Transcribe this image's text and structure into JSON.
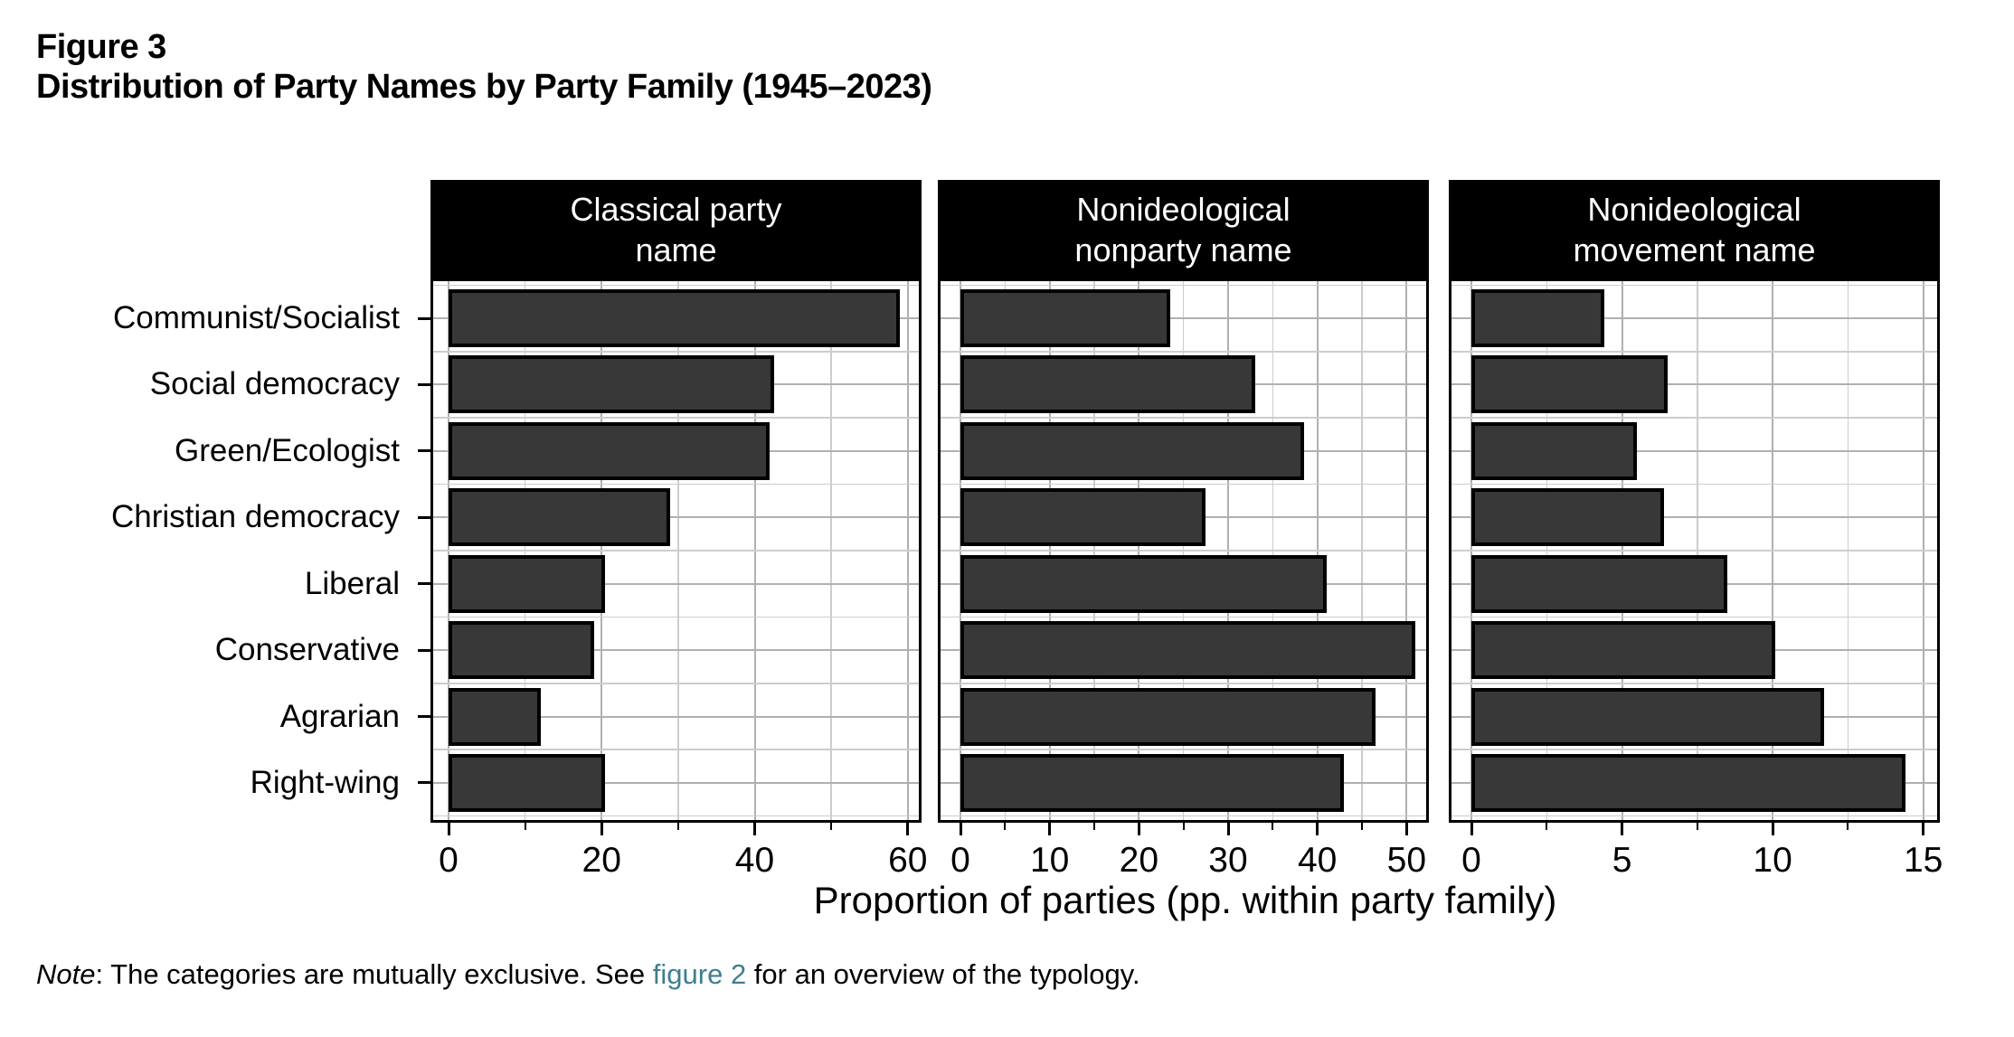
{
  "figure": {
    "label": "Figure 3",
    "title": "Distribution of Party Names by Party Family (1945–2023)"
  },
  "chart_data": {
    "type": "bar",
    "orientation": "horizontal",
    "categories": [
      "Communist/Socialist",
      "Social democracy",
      "Green/Ecologist",
      "Christian democracy",
      "Liberal",
      "Conservative",
      "Agrarian",
      "Right-wing"
    ],
    "xlabel": "Proportion of parties (pp. within party family)",
    "grid": "major and minor, light gray, both axes",
    "legend_position": "none",
    "panels": [
      {
        "title_lines": [
          "Classical party",
          "name"
        ],
        "ticks": [
          0,
          20,
          40,
          60
        ],
        "minor_ticks": [
          10,
          30,
          50
        ],
        "xlim": [
          0,
          61.8
        ],
        "values": [
          59,
          42.5,
          42,
          29,
          20.5,
          19,
          12,
          20.5
        ]
      },
      {
        "title_lines": [
          "Nonideological",
          "nonparty name"
        ],
        "ticks": [
          0,
          10,
          20,
          30,
          40,
          50
        ],
        "minor_ticks": [
          5,
          15,
          25,
          35,
          45
        ],
        "xlim": [
          0,
          52.5
        ],
        "values": [
          23.5,
          33,
          38.5,
          27.5,
          41,
          51,
          46.5,
          43
        ]
      },
      {
        "title_lines": [
          "Nonideological",
          "movement name"
        ],
        "ticks": [
          0,
          5,
          10,
          15
        ],
        "minor_ticks": [
          2.5,
          7.5,
          12.5
        ],
        "xlim": [
          0,
          15.55
        ],
        "values": [
          4.4,
          6.5,
          5.5,
          6.4,
          8.5,
          10.1,
          11.7,
          14.4
        ]
      }
    ],
    "colors": {
      "bar_fill": "#383838",
      "bar_border": "#000000",
      "panel_header_bg": "#000000",
      "panel_header_text": "#ffffff",
      "grid_major": "#b0b0b0",
      "grid_minor": "#cdcdcd",
      "link": "#3e7e90"
    }
  },
  "note": {
    "prefix_italic": "Note",
    "body": ": The categories are mutually exclusive. See ",
    "link_text": "figure 2",
    "suffix": " for an overview of the typology."
  }
}
